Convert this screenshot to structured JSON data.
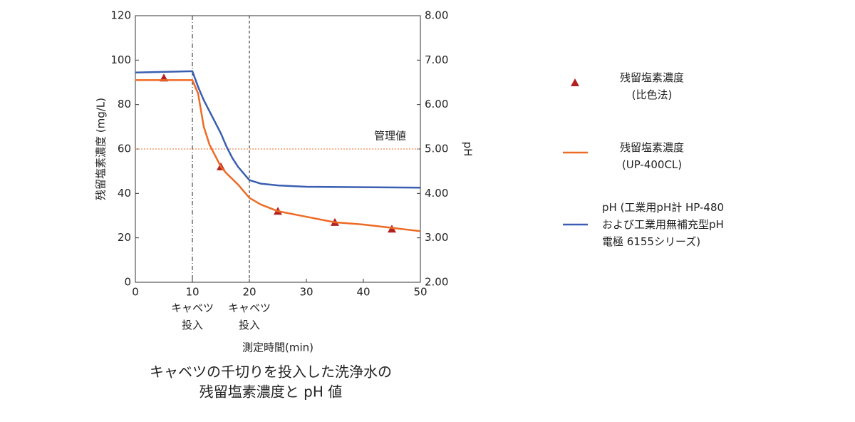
{
  "chart_data": {
    "type": "line",
    "title": [
      "キャベツの千切りを投入した洗浄水の",
      "残留塩素濃度と pH 値"
    ],
    "x_label": "測定時間(min)",
    "y_label": "残留塩素濃度 (mg/L)",
    "y2_label": "pH",
    "xlim": [
      0,
      50
    ],
    "xticks": [
      0,
      10,
      20,
      30,
      40,
      50
    ],
    "ylim": [
      0,
      120
    ],
    "yticks": [
      0,
      20,
      40,
      60,
      80,
      100,
      120
    ],
    "y2lim": [
      2,
      8
    ],
    "y2ticks": [
      {
        "value": 2,
        "label": "2.00"
      },
      {
        "value": 3,
        "label": "3.00"
      },
      {
        "value": 4,
        "label": "4.00"
      },
      {
        "value": 5,
        "label": "5.00"
      },
      {
        "value": 6,
        "label": "6.00"
      },
      {
        "value": 7,
        "label": "7.00"
      },
      {
        "value": 8,
        "label": "8.00"
      }
    ],
    "series": [
      {
        "name": "残留塩素濃度\n(比色法)",
        "color": "#b22222",
        "marker": "triangle",
        "x": [
          5,
          15,
          25,
          35,
          45
        ],
        "values": [
          92,
          52,
          32,
          27,
          24
        ]
      },
      {
        "name": "残留塩素濃度\n(UP-400CL)",
        "color": "#ee6a24",
        "x": [
          0,
          10,
          11,
          12,
          13,
          14,
          15,
          16,
          18,
          20,
          22,
          25,
          30,
          35,
          40,
          45,
          50
        ],
        "values": [
          91,
          91,
          85,
          70,
          62,
          57,
          52,
          49,
          44,
          38,
          35,
          32,
          29.5,
          27,
          26,
          24.5,
          23
        ]
      },
      {
        "name": "pH (工業用pH計 HP-480\nおよび工業用無補充型pH\n電極 6155シリーズ)",
        "color": "#3a5fb0",
        "axis": "y2",
        "x": [
          0,
          10,
          11,
          12,
          13,
          14,
          15,
          16,
          17,
          18,
          19,
          20,
          22,
          25,
          30,
          40,
          50
        ],
        "values": [
          6.72,
          6.75,
          6.4,
          6.1,
          5.85,
          5.6,
          5.35,
          5.05,
          4.8,
          4.6,
          4.45,
          4.3,
          4.22,
          4.18,
          4.15,
          4.14,
          4.13
        ]
      }
    ],
    "vlines": [
      {
        "x": 10,
        "label": "キャベツ\n投入"
      },
      {
        "x": 20,
        "label": "キャベツ\n投入"
      }
    ],
    "hline": {
      "y": 60,
      "label": "管理値",
      "color": "#ee6a24"
    }
  }
}
